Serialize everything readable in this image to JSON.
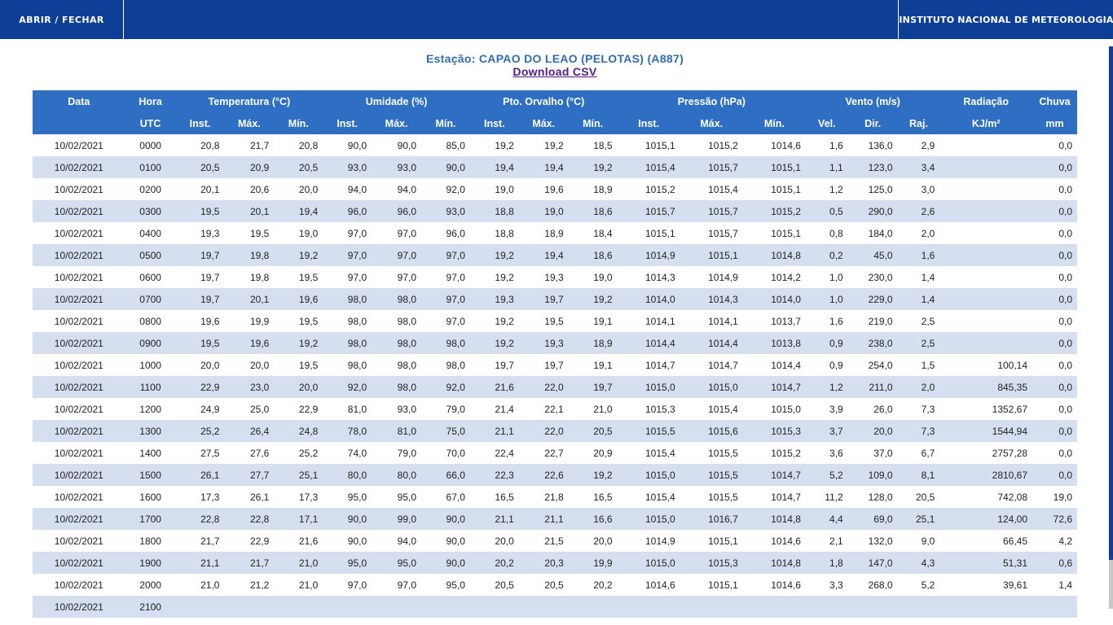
{
  "topbar": {
    "menu_label": "ABRIR / FECHAR",
    "institute": "INSTITUTO NACIONAL DE METEOROLOGIA"
  },
  "station": {
    "title": "Estação: CAPAO DO LEAO (PELOTAS) (A887)",
    "download_label": "Download CSV"
  },
  "table": {
    "group_headers": [
      "Data",
      "Hora",
      "Temperatura (°C)",
      "Umidade (%)",
      "Pto. Orvalho (°C)",
      "Pressão (hPa)",
      "Vento (m/s)",
      "Radiação",
      "Chuva"
    ],
    "sub_headers": [
      "",
      "UTC",
      "Inst.",
      "Máx.",
      "Mín.",
      "Inst.",
      "Máx.",
      "Mín.",
      "Inst.",
      "Máx.",
      "Mín.",
      "Inst.",
      "Máx.",
      "Mín.",
      "Vel.",
      "Dir.",
      "Raj.",
      "KJ/m²",
      "mm"
    ],
    "rows": [
      [
        "10/02/2021",
        "0000",
        "20,8",
        "21,7",
        "20,8",
        "90,0",
        "90,0",
        "85,0",
        "19,2",
        "19,2",
        "18,5",
        "1015,1",
        "1015,2",
        "1014,6",
        "1,6",
        "136,0",
        "2,9",
        "",
        "0,0"
      ],
      [
        "10/02/2021",
        "0100",
        "20,5",
        "20,9",
        "20,5",
        "93,0",
        "93,0",
        "90,0",
        "19,4",
        "19,4",
        "19,2",
        "1015,4",
        "1015,7",
        "1015,1",
        "1,1",
        "123,0",
        "3,4",
        "",
        "0,0"
      ],
      [
        "10/02/2021",
        "0200",
        "20,1",
        "20,6",
        "20,0",
        "94,0",
        "94,0",
        "92,0",
        "19,0",
        "19,6",
        "18,9",
        "1015,2",
        "1015,4",
        "1015,1",
        "1,2",
        "125,0",
        "3,0",
        "",
        "0,0"
      ],
      [
        "10/02/2021",
        "0300",
        "19,5",
        "20,1",
        "19,4",
        "96,0",
        "96,0",
        "93,0",
        "18,8",
        "19,0",
        "18,6",
        "1015,7",
        "1015,7",
        "1015,2",
        "0,5",
        "290,0",
        "2,6",
        "",
        "0,0"
      ],
      [
        "10/02/2021",
        "0400",
        "19,3",
        "19,5",
        "19,0",
        "97,0",
        "97,0",
        "96,0",
        "18,8",
        "18,9",
        "18,4",
        "1015,1",
        "1015,7",
        "1015,1",
        "0,8",
        "184,0",
        "2,0",
        "",
        "0,0"
      ],
      [
        "10/02/2021",
        "0500",
        "19,7",
        "19,8",
        "19,2",
        "97,0",
        "97,0",
        "97,0",
        "19,2",
        "19,4",
        "18,6",
        "1014,9",
        "1015,1",
        "1014,8",
        "0,2",
        "45,0",
        "1,6",
        "",
        "0,0"
      ],
      [
        "10/02/2021",
        "0600",
        "19,7",
        "19,8",
        "19,5",
        "97,0",
        "97,0",
        "97,0",
        "19,2",
        "19,3",
        "19,0",
        "1014,3",
        "1014,9",
        "1014,2",
        "1,0",
        "230,0",
        "1,4",
        "",
        "0,0"
      ],
      [
        "10/02/2021",
        "0700",
        "19,7",
        "20,1",
        "19,6",
        "98,0",
        "98,0",
        "97,0",
        "19,3",
        "19,7",
        "19,2",
        "1014,0",
        "1014,3",
        "1014,0",
        "1,0",
        "229,0",
        "1,4",
        "",
        "0,0"
      ],
      [
        "10/02/2021",
        "0800",
        "19,6",
        "19,9",
        "19,5",
        "98,0",
        "98,0",
        "97,0",
        "19,2",
        "19,5",
        "19,1",
        "1014,1",
        "1014,1",
        "1013,7",
        "1,6",
        "219,0",
        "2,5",
        "",
        "0,0"
      ],
      [
        "10/02/2021",
        "0900",
        "19,5",
        "19,6",
        "19,2",
        "98,0",
        "98,0",
        "98,0",
        "19,2",
        "19,3",
        "18,9",
        "1014,4",
        "1014,4",
        "1013,8",
        "0,9",
        "238,0",
        "2,5",
        "",
        "0,0"
      ],
      [
        "10/02/2021",
        "1000",
        "20,0",
        "20,0",
        "19,5",
        "98,0",
        "98,0",
        "98,0",
        "19,7",
        "19,7",
        "19,1",
        "1014,7",
        "1014,7",
        "1014,4",
        "0,9",
        "254,0",
        "1,5",
        "100,14",
        "0,0"
      ],
      [
        "10/02/2021",
        "1100",
        "22,9",
        "23,0",
        "20,0",
        "92,0",
        "98,0",
        "92,0",
        "21,6",
        "22,0",
        "19,7",
        "1015,0",
        "1015,0",
        "1014,7",
        "1,2",
        "211,0",
        "2,0",
        "845,35",
        "0,0"
      ],
      [
        "10/02/2021",
        "1200",
        "24,9",
        "25,0",
        "22,9",
        "81,0",
        "93,0",
        "79,0",
        "21,4",
        "22,1",
        "21,0",
        "1015,3",
        "1015,4",
        "1015,0",
        "3,9",
        "26,0",
        "7,3",
        "1352,67",
        "0,0"
      ],
      [
        "10/02/2021",
        "1300",
        "25,2",
        "26,4",
        "24,8",
        "78,0",
        "81,0",
        "75,0",
        "21,1",
        "22,0",
        "20,5",
        "1015,5",
        "1015,6",
        "1015,3",
        "3,7",
        "20,0",
        "7,3",
        "1544,94",
        "0,0"
      ],
      [
        "10/02/2021",
        "1400",
        "27,5",
        "27,6",
        "25,2",
        "74,0",
        "79,0",
        "70,0",
        "22,4",
        "22,7",
        "20,9",
        "1015,4",
        "1015,5",
        "1015,2",
        "3,6",
        "37,0",
        "6,7",
        "2757,28",
        "0,0"
      ],
      [
        "10/02/2021",
        "1500",
        "26,1",
        "27,7",
        "25,1",
        "80,0",
        "80,0",
        "66,0",
        "22,3",
        "22,6",
        "19,2",
        "1015,0",
        "1015,5",
        "1014,7",
        "5,2",
        "109,0",
        "8,1",
        "2810,67",
        "0,0"
      ],
      [
        "10/02/2021",
        "1600",
        "17,3",
        "26,1",
        "17,3",
        "95,0",
        "95,0",
        "67,0",
        "16,5",
        "21,8",
        "16,5",
        "1015,4",
        "1015,5",
        "1014,7",
        "11,2",
        "128,0",
        "20,5",
        "742,08",
        "19,0"
      ],
      [
        "10/02/2021",
        "1700",
        "22,8",
        "22,8",
        "17,1",
        "90,0",
        "99,0",
        "90,0",
        "21,1",
        "21,1",
        "16,6",
        "1015,0",
        "1016,7",
        "1014,8",
        "4,4",
        "69,0",
        "25,1",
        "124,00",
        "72,6"
      ],
      [
        "10/02/2021",
        "1800",
        "21,7",
        "22,9",
        "21,6",
        "90,0",
        "94,0",
        "90,0",
        "20,0",
        "21,5",
        "20,0",
        "1014,9",
        "1015,1",
        "1014,6",
        "2,1",
        "132,0",
        "9,0",
        "66,45",
        "4,2"
      ],
      [
        "10/02/2021",
        "1900",
        "21,1",
        "21,7",
        "21,0",
        "95,0",
        "95,0",
        "90,0",
        "20,2",
        "20,3",
        "19,9",
        "1015,0",
        "1015,3",
        "1014,8",
        "1,8",
        "147,0",
        "4,3",
        "51,31",
        "0,6"
      ],
      [
        "10/02/2021",
        "2000",
        "21,0",
        "21,2",
        "21,0",
        "97,0",
        "97,0",
        "95,0",
        "20,5",
        "20,5",
        "20,2",
        "1014,6",
        "1015,1",
        "1014,6",
        "3,3",
        "268,0",
        "5,2",
        "39,61",
        "1,4"
      ],
      [
        "10/02/2021",
        "2100",
        "",
        "",
        "",
        "",
        "",
        "",
        "",
        "",
        "",
        "",
        "",
        "",
        "",
        "",
        "",
        "",
        ""
      ]
    ]
  }
}
